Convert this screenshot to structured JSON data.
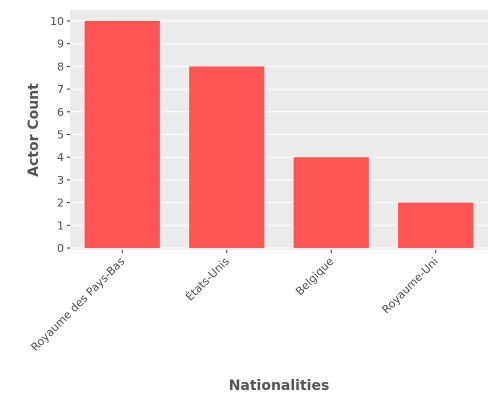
{
  "chart_data": {
    "type": "bar",
    "categories": [
      "Royaume des Pays-Bas",
      "États-Unis",
      "Belgique",
      "Royaume-Uni"
    ],
    "values": [
      10,
      8,
      4,
      2
    ],
    "title": "",
    "xlabel": "Nationalities",
    "ylabel": "Actor Count",
    "ylim": [
      0,
      10
    ],
    "yticks": [
      0,
      1,
      2,
      3,
      4,
      5,
      6,
      7,
      8,
      9,
      10
    ],
    "grid": true,
    "colors": {
      "bar": "#ff5454",
      "panel_background": "#ebebeb",
      "gridline": "#ffffff"
    }
  }
}
